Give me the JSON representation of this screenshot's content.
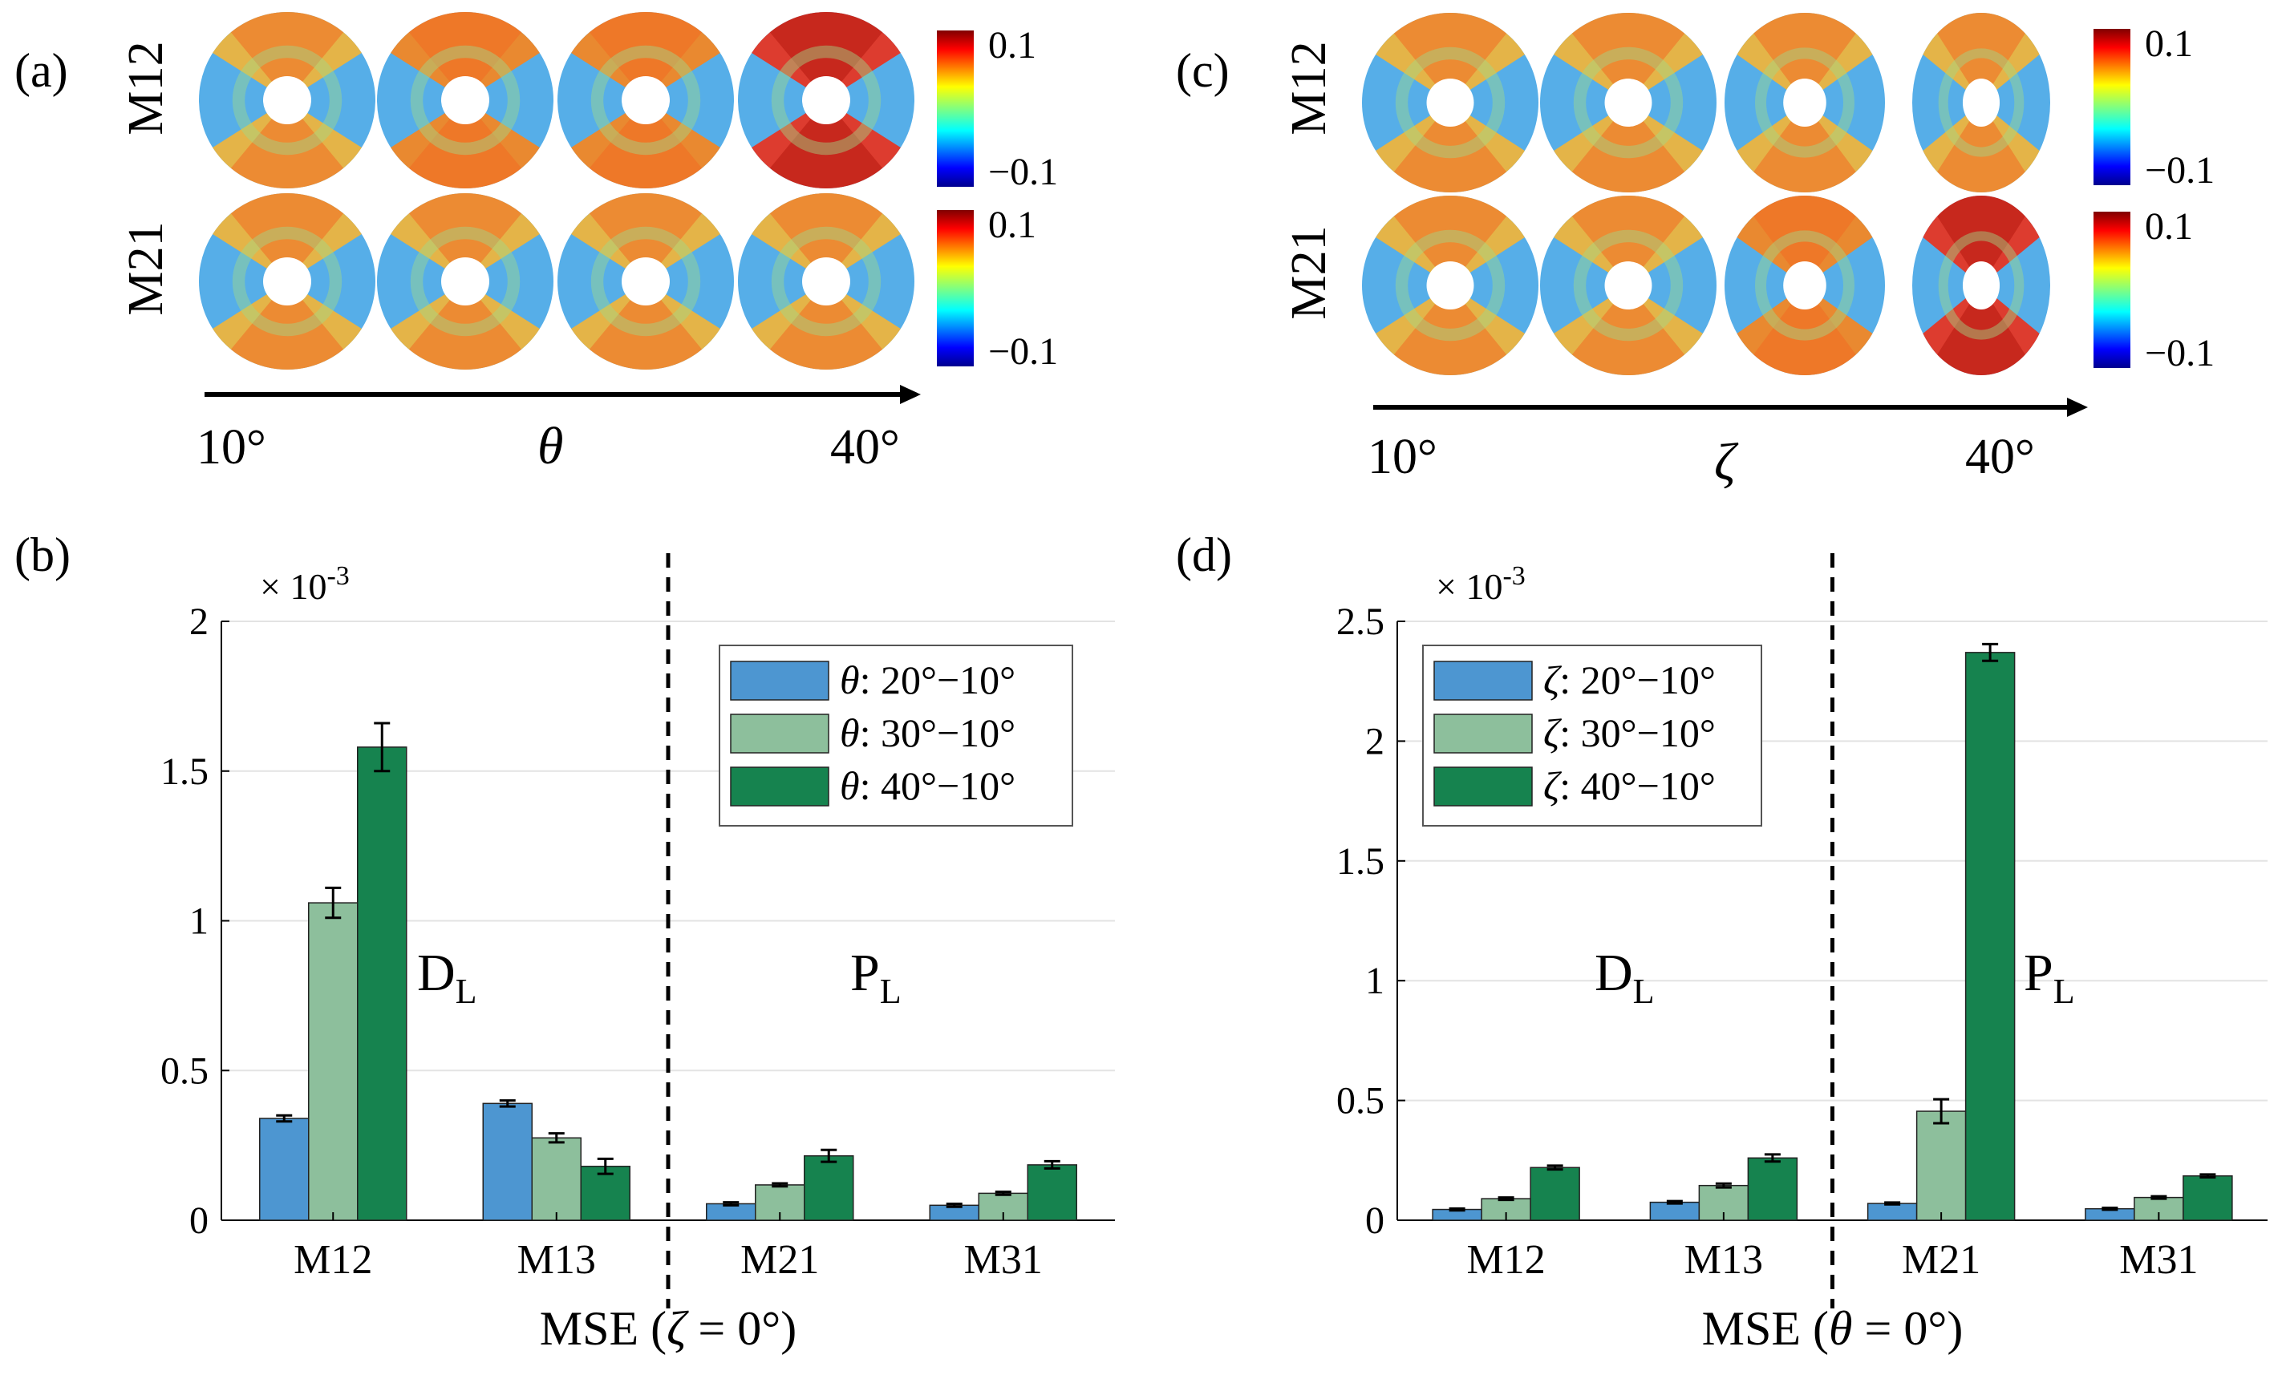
{
  "panels": {
    "a": {
      "label": "(a)",
      "rows": [
        "M12",
        "M21"
      ],
      "axis_start": "10°",
      "axis_var": "θ",
      "axis_end": "40°",
      "colorbar": {
        "max": "0.1",
        "min": "−0.1"
      }
    },
    "c": {
      "label": "(c)",
      "rows": [
        "M12",
        "M21"
      ],
      "axis_start": "10°",
      "axis_var": "ζ",
      "axis_end": "40°",
      "colorbar": {
        "max": "0.1",
        "min": "−0.1"
      }
    },
    "b": {
      "label": "(b)"
    },
    "d": {
      "label": "(d)"
    }
  },
  "chart_data": [
    {
      "type": "bar",
      "panel": "(b)",
      "xlabel_prefix": "MSE (",
      "xlabel_var": "ζ",
      "xlabel_suffix": " = 0°)",
      "ylabel": "",
      "exponent_base": "× 10",
      "exponent_power": "-3",
      "ylim": [
        0,
        2
      ],
      "yticks": [
        "0",
        "0.5",
        "1",
        "1.5",
        "2"
      ],
      "ytick_values": [
        0,
        0.5,
        1,
        1.5,
        2
      ],
      "grid": true,
      "categories": [
        "M12",
        "M13",
        "M21",
        "M31"
      ],
      "series": [
        {
          "name_var": "θ",
          "name_rest": ": 20°−10°",
          "color": "#4d96d1",
          "values": [
            0.34,
            0.39,
            0.055,
            0.05
          ],
          "errors": [
            0.01,
            0.01,
            0.005,
            0.005
          ]
        },
        {
          "name_var": "θ",
          "name_rest": ": 30°−10°",
          "color": "#8dbf9c",
          "values": [
            1.06,
            0.275,
            0.118,
            0.09
          ],
          "errors": [
            0.05,
            0.015,
            0.005,
            0.005
          ]
        },
        {
          "name_var": "θ",
          "name_rest": ": 40°−10°",
          "color": "#16834f",
          "values": [
            1.58,
            0.18,
            0.215,
            0.185
          ],
          "errors": [
            0.08,
            0.025,
            0.02,
            0.012
          ]
        }
      ],
      "divider_after_category": 1,
      "regions": [
        {
          "main": "D",
          "sub": "L"
        },
        {
          "main": "P",
          "sub": "L"
        }
      ],
      "legend_position": "top-right"
    },
    {
      "type": "bar",
      "panel": "(d)",
      "xlabel_prefix": "MSE (",
      "xlabel_var": "θ",
      "xlabel_suffix": " = 0°)",
      "ylabel": "",
      "exponent_base": "× 10",
      "exponent_power": "-3",
      "ylim": [
        0,
        2.5
      ],
      "yticks": [
        "0",
        "0.5",
        "1",
        "1.5",
        "2",
        "2.5"
      ],
      "ytick_values": [
        0,
        0.5,
        1,
        1.5,
        2,
        2.5
      ],
      "grid": true,
      "categories": [
        "M12",
        "M13",
        "M21",
        "M31"
      ],
      "series": [
        {
          "name_var": "ζ",
          "name_rest": ": 20°−10°",
          "color": "#4d96d1",
          "values": [
            0.045,
            0.075,
            0.07,
            0.048
          ],
          "errors": [
            0.004,
            0.005,
            0.004,
            0.004
          ]
        },
        {
          "name_var": "ζ",
          "name_rest": ": 30°−10°",
          "color": "#8dbf9c",
          "values": [
            0.09,
            0.145,
            0.455,
            0.095
          ],
          "errors": [
            0.005,
            0.008,
            0.05,
            0.005
          ]
        },
        {
          "name_var": "ζ",
          "name_rest": ": 40°−10°",
          "color": "#16834f",
          "values": [
            0.22,
            0.26,
            2.37,
            0.185
          ],
          "errors": [
            0.008,
            0.015,
            0.035,
            0.006
          ]
        }
      ],
      "divider_after_category": 1,
      "regions": [
        {
          "main": "D",
          "sub": "L"
        },
        {
          "main": "P",
          "sub": "L"
        }
      ],
      "legend_position": "top-left"
    }
  ]
}
